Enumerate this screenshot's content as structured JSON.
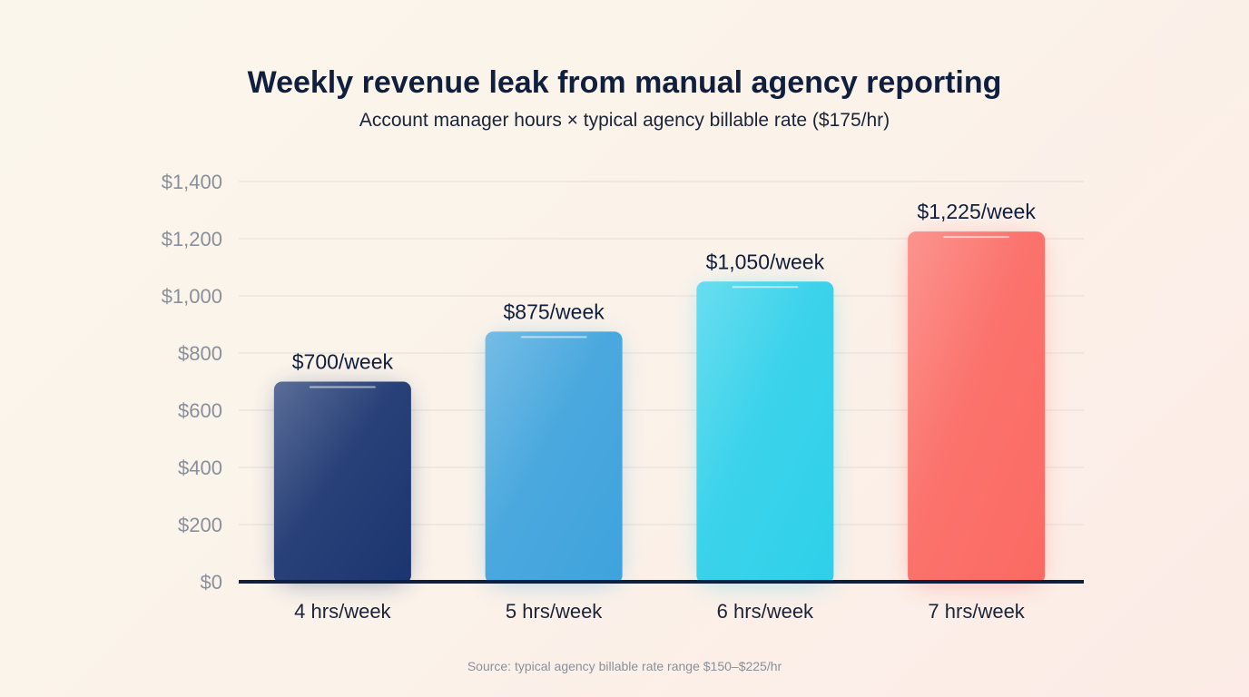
{
  "chart_data": {
    "type": "bar",
    "title": "Weekly revenue leak from manual agency reporting",
    "subtitle": "Account manager hours × typical agency billable rate ($175/hr)",
    "categories": [
      "4 hrs/week",
      "5 hrs/week",
      "6 hrs/week",
      "7 hrs/week"
    ],
    "values": [
      700,
      875,
      1050,
      1225
    ],
    "data_labels": [
      "$700/week",
      "$875/week",
      "$1,050/week",
      "$1,225/week"
    ],
    "bar_colors": [
      "#1b3570",
      "#3fa3dc",
      "#2fd0ea",
      "#fb6a63"
    ],
    "ylim": [
      0,
      1400
    ],
    "yticks": [
      0,
      200,
      400,
      600,
      800,
      1000,
      1200,
      1400
    ],
    "ytick_labels": [
      "$0",
      "$200",
      "$400",
      "$600",
      "$800",
      "$1,000",
      "$1,200",
      "$1,400"
    ],
    "grid": true,
    "source": "Source: typical agency billable rate range $150–$225/hr"
  }
}
